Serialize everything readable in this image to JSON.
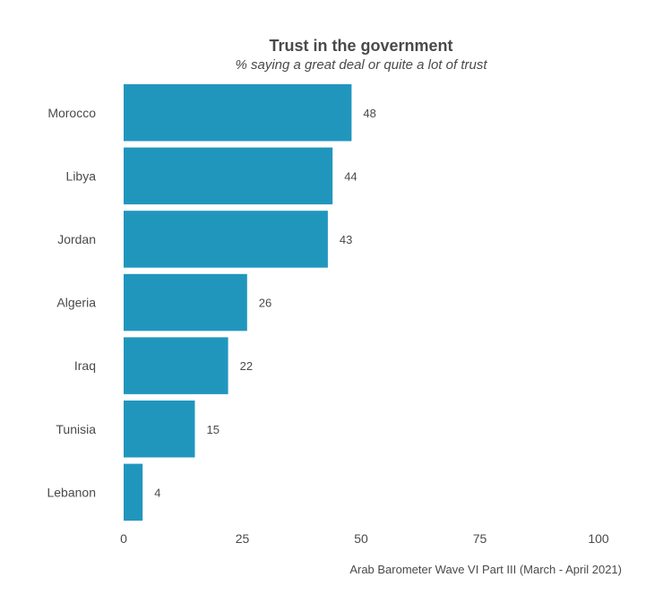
{
  "chart_data": {
    "type": "bar",
    "orientation": "horizontal",
    "title": "Trust in the government",
    "subtitle": "% saying a great deal or quite a lot of trust",
    "categories": [
      "Morocco",
      "Libya",
      "Jordan",
      "Algeria",
      "Iraq",
      "Tunisia",
      "Lebanon"
    ],
    "values": [
      48,
      44,
      43,
      26,
      22,
      15,
      4
    ],
    "xlim": [
      0,
      100
    ],
    "xticks": [
      "0",
      "25",
      "50",
      "75",
      "100"
    ],
    "bar_color": "#2196BD",
    "grid": false,
    "caption": "Arab Barometer Wave VI Part III (March - April 2021)"
  }
}
